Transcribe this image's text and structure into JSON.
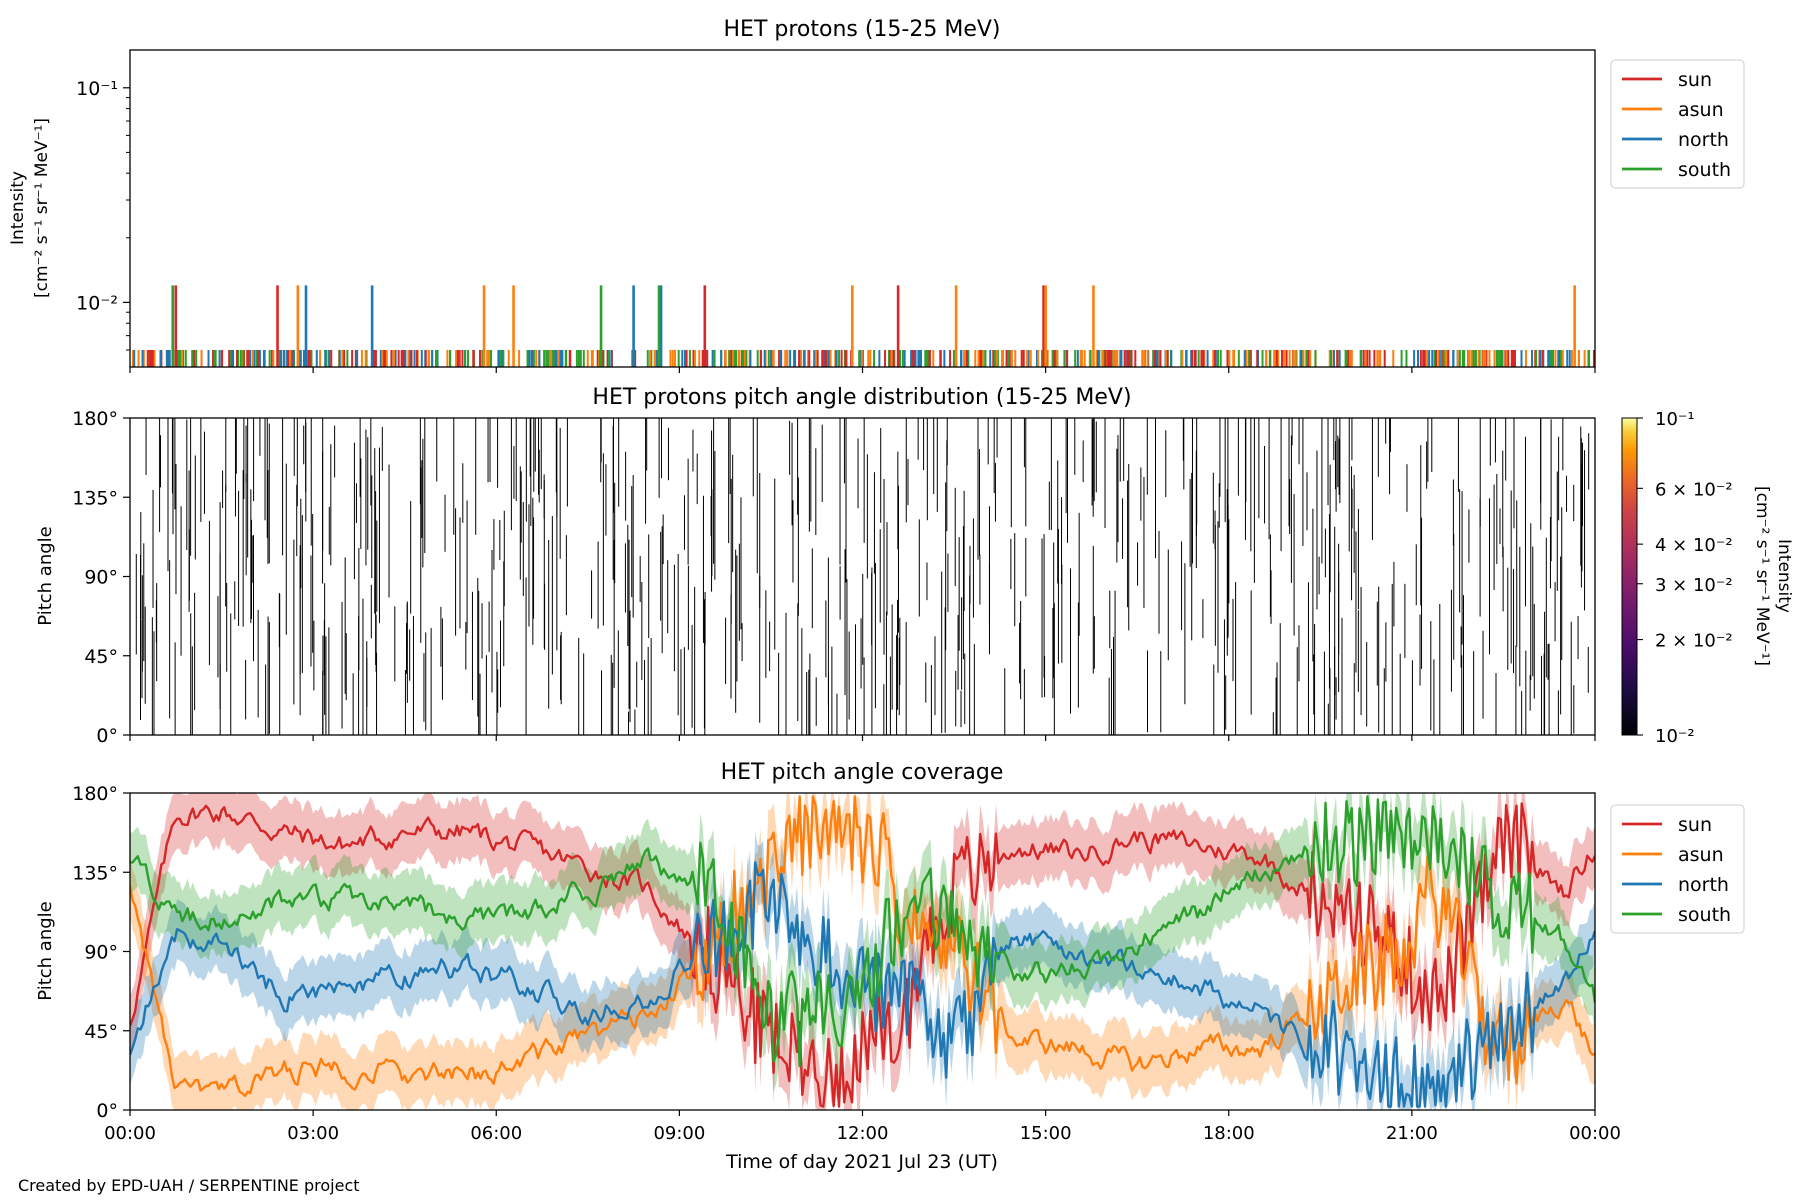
{
  "footer": {
    "credit": "Created by EPD-UAH / SERPENTINE project"
  },
  "series_colors": {
    "sun": "#d62728",
    "asun": "#ff7f0e",
    "north": "#1f77b4",
    "south": "#2ca02c"
  },
  "chart_data": [
    {
      "type": "line",
      "title": "HET protons (15-25 MeV)",
      "ylabel": "Intensity",
      "ylabel_units": "[cm⁻² s⁻¹ sr⁻¹ MeV⁻¹]",
      "yscale": "log",
      "ylim": [
        0.005,
        0.15
      ],
      "yticks": [
        "10⁻¹",
        "10⁻²"
      ],
      "xlim": [
        "2021-07-23T00:00",
        "2021-07-24T00:00"
      ],
      "legend": {
        "placement": "outside-right-top",
        "entries": [
          "sun",
          "asun",
          "north",
          "south"
        ]
      },
      "baseline": 0.006,
      "spike_value": 0.012,
      "spikes": {
        "sun": [
          "00:45",
          "02:25",
          "09:25",
          "12:35",
          "14:58"
        ],
        "asun": [
          "02:45",
          "05:48",
          "06:17",
          "11:50",
          "13:32",
          "15:00",
          "15:47",
          "23:40"
        ],
        "north": [
          "02:53",
          "03:58",
          "08:15",
          "08:42"
        ],
        "south": [
          "00:42",
          "07:43",
          "08:40"
        ]
      }
    },
    {
      "type": "heatmap",
      "title": "HET protons pitch angle distribution (15-25 MeV)",
      "ylabel": "Pitch angle",
      "ylim": [
        0,
        180
      ],
      "yticks": [
        "0°",
        "45°",
        "90°",
        "135°",
        "180°"
      ],
      "colorbar": {
        "label": "Intensity",
        "units": "[cm⁻² s⁻¹ sr⁻¹ MeV⁻¹]",
        "scale": "log",
        "range": [
          0.01,
          0.1
        ],
        "ticks": [
          "10⁻¹",
          "6 × 10⁻²",
          "4 × 10⁻²",
          "3 × 10⁻²",
          "2 × 10⁻²",
          "10⁻²"
        ],
        "colormap": "inferno"
      }
    },
    {
      "type": "area",
      "title": "HET pitch angle coverage",
      "ylabel": "Pitch angle",
      "xlabel": "Time of day 2021 Jul 23 (UT)",
      "ylim": [
        0,
        180
      ],
      "yticks": [
        "0°",
        "45°",
        "90°",
        "135°",
        "180°"
      ],
      "xticks": [
        "00:00",
        "03:00",
        "06:00",
        "09:00",
        "12:00",
        "15:00",
        "18:00",
        "21:00",
        "00:00"
      ],
      "legend": {
        "placement": "outside-right-top",
        "entries": [
          "sun",
          "asun",
          "north",
          "south"
        ]
      },
      "x_hours": [
        0,
        0.75,
        1.5,
        2.5,
        3.5,
        4.5,
        5.5,
        6.5,
        7.5,
        8.5,
        9.5,
        10.5,
        11.5,
        12.5,
        13.5,
        14.5,
        15.5,
        16.5,
        17.5,
        18.5,
        19.5,
        20.5,
        21.5,
        22.5,
        23.5,
        24
      ],
      "series": [
        {
          "name": "sun",
          "values": [
            50,
            168,
            170,
            158,
            150,
            158,
            158,
            148,
            138,
            125,
            85,
            40,
            20,
            50,
            130,
            150,
            145,
            155,
            150,
            145,
            120,
            100,
            60,
            150,
            125,
            150
          ]
        },
        {
          "name": "asun",
          "values": [
            130,
            10,
            8,
            22,
            25,
            20,
            18,
            30,
            40,
            55,
            85,
            140,
            170,
            130,
            90,
            40,
            35,
            25,
            35,
            35,
            60,
            80,
            120,
            30,
            65,
            30
          ]
        },
        {
          "name": "north",
          "values": [
            35,
            100,
            95,
            65,
            70,
            75,
            82,
            70,
            55,
            60,
            100,
            120,
            90,
            65,
            40,
            100,
            90,
            80,
            70,
            55,
            30,
            20,
            20,
            50,
            70,
            100
          ]
        },
        {
          "name": "south",
          "values": [
            145,
            110,
            108,
            118,
            120,
            115,
            108,
            112,
            125,
            140,
            120,
            50,
            55,
            100,
            110,
            75,
            80,
            95,
            110,
            135,
            150,
            160,
            150,
            120,
            95,
            60
          ]
        }
      ]
    }
  ]
}
